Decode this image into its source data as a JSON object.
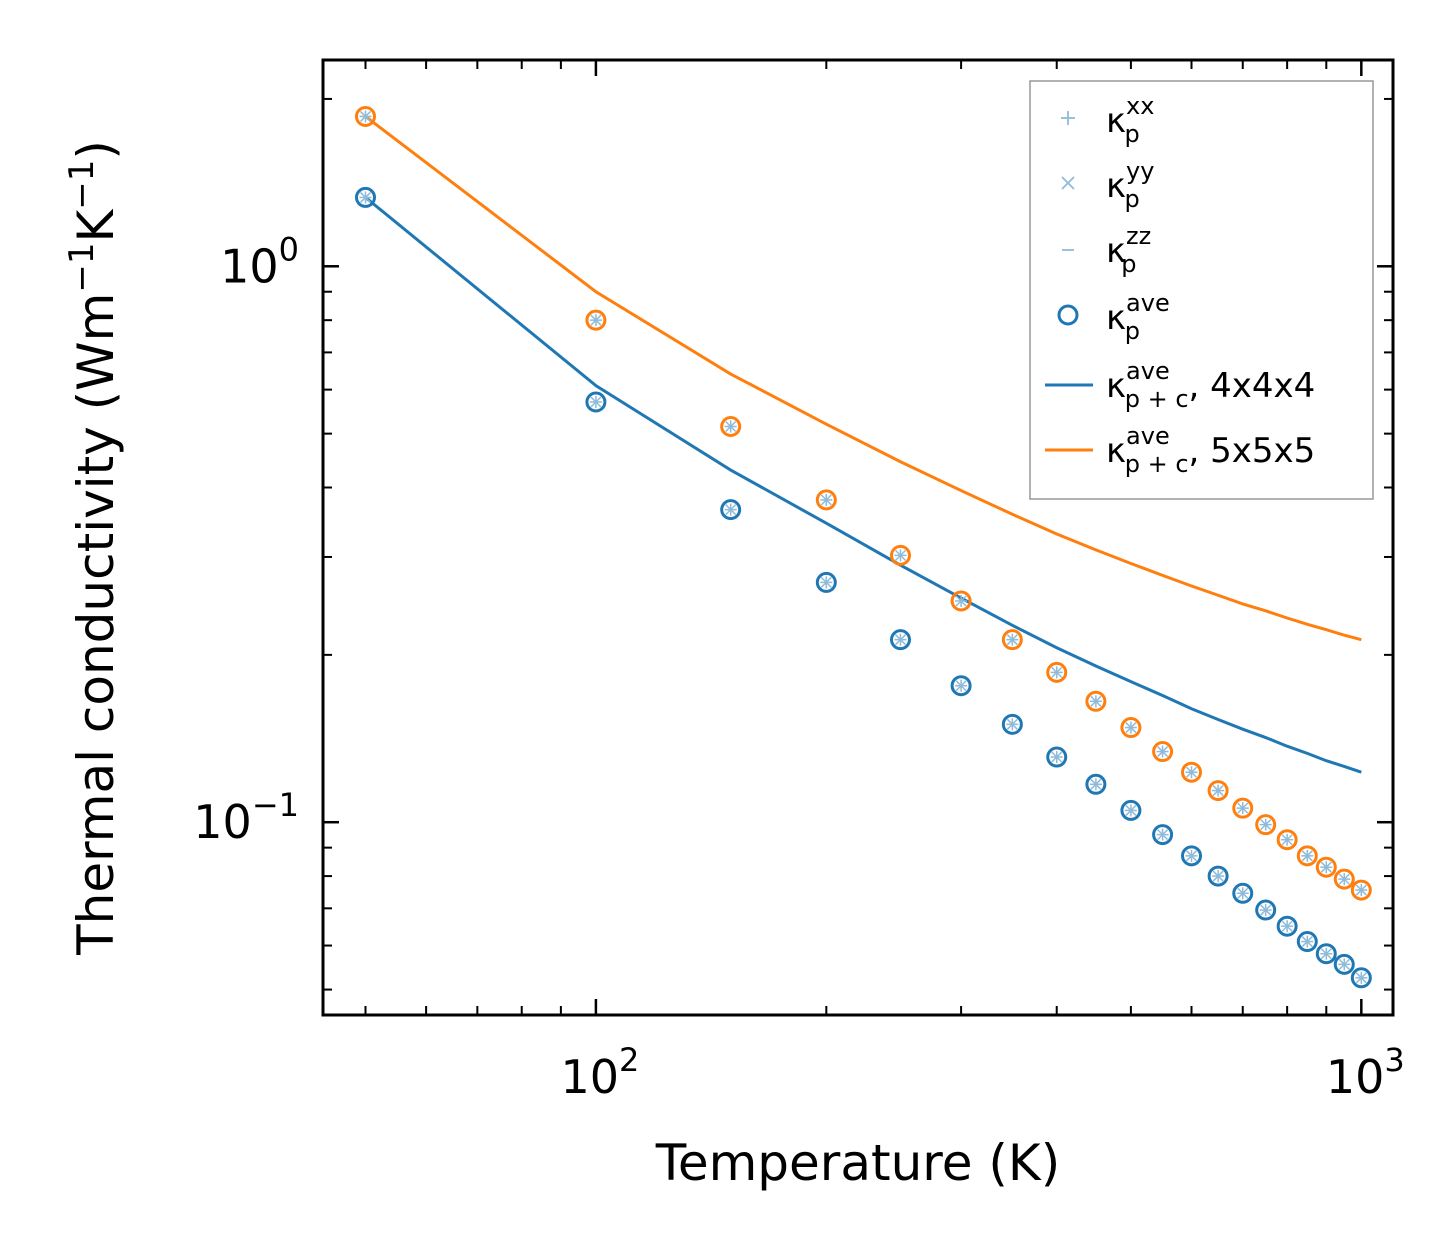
{
  "chart_data": {
    "type": "scatter",
    "xlabel": "Temperature (K)",
    "ylabel_parts": {
      "prefix": "Thermal conductivity (Wm",
      "exp1": "−1",
      "mid": "K",
      "exp2": "−1",
      "suffix": ")"
    },
    "xscale": "log",
    "yscale": "log",
    "xlim": [
      44,
      1100
    ],
    "ylim": [
      0.045,
      2.35
    ],
    "x_ticks": [
      {
        "value": 100,
        "base": "10",
        "exp": "2"
      },
      {
        "value": 1000,
        "base": "10",
        "exp": "3"
      }
    ],
    "y_ticks": [
      {
        "value": 1.0,
        "base": "10",
        "exp": "0"
      },
      {
        "value": 0.1,
        "base": "10",
        "exp": "−1"
      }
    ],
    "x": [
      50,
      100,
      150,
      200,
      250,
      300,
      350,
      400,
      450,
      500,
      550,
      600,
      650,
      700,
      750,
      800,
      850,
      900,
      950,
      1000
    ],
    "series": [
      {
        "name": "κp ave (4x4x4)",
        "kind": "points",
        "color": "#1f77b4",
        "values": [
          1.33,
          0.57,
          0.365,
          0.27,
          0.213,
          0.176,
          0.15,
          0.131,
          0.117,
          0.105,
          0.095,
          0.087,
          0.08,
          0.0745,
          0.0695,
          0.065,
          0.061,
          0.058,
          0.0555,
          0.0525
        ]
      },
      {
        "name": "κp ave (5x5x5)",
        "kind": "points",
        "color": "#ff7f0e",
        "values": [
          1.86,
          0.8,
          0.515,
          0.38,
          0.302,
          0.25,
          0.213,
          0.186,
          0.165,
          0.148,
          0.134,
          0.123,
          0.114,
          0.106,
          0.099,
          0.093,
          0.087,
          0.083,
          0.079,
          0.0755
        ]
      },
      {
        "name": "κp+c ave, 4x4x4",
        "kind": "line",
        "color": "#1f77b4",
        "values": [
          1.33,
          0.61,
          0.43,
          0.345,
          0.29,
          0.253,
          0.226,
          0.206,
          0.191,
          0.179,
          0.169,
          0.16,
          0.153,
          0.147,
          0.142,
          0.137,
          0.133,
          0.129,
          0.126,
          0.123
        ]
      },
      {
        "name": "κp+c ave, 5x5x5",
        "kind": "line",
        "color": "#ff7f0e",
        "values": [
          1.86,
          0.9,
          0.64,
          0.52,
          0.445,
          0.395,
          0.358,
          0.33,
          0.309,
          0.292,
          0.278,
          0.266,
          0.256,
          0.247,
          0.24,
          0.233,
          0.227,
          0.222,
          0.217,
          0.213
        ]
      }
    ],
    "legend": {
      "position": "top-right",
      "entries": [
        {
          "marker": "plus",
          "base": "κ",
          "sup": "xx",
          "sub": "p",
          "suffix": ""
        },
        {
          "marker": "cross",
          "base": "κ",
          "sup": "yy",
          "sub": "p",
          "suffix": ""
        },
        {
          "marker": "hline",
          "base": "κ",
          "sup": "zz",
          "sub": "p",
          "suffix": ""
        },
        {
          "marker": "circle",
          "base": "κ",
          "sup": "ave",
          "sub": "p",
          "suffix": ""
        },
        {
          "marker": "line-blue",
          "base": "κ",
          "sup": "ave",
          "sub": "p + c",
          "suffix": ", 4x4x4"
        },
        {
          "marker": "line-orange",
          "base": "κ",
          "sup": "ave",
          "sub": "p + c",
          "suffix": ", 5x5x5"
        }
      ]
    },
    "colors": {
      "blue": "#1f77b4",
      "orange": "#ff7f0e",
      "light_blue": "#8fbbd9",
      "frame": "#000000"
    }
  }
}
